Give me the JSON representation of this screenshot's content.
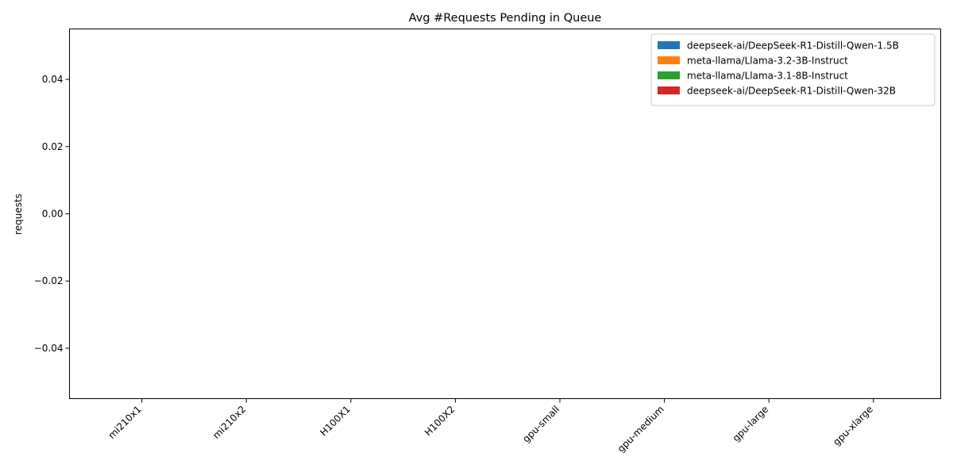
{
  "chart_data": {
    "type": "bar",
    "title": "Avg #Requests Pending in Queue",
    "xlabel": "",
    "ylabel": "requests",
    "categories": [
      "mi210x1",
      "mi210x2",
      "H100X1",
      "H100X2",
      "gpu-small",
      "gpu-medium",
      "gpu-large",
      "gpu-xlarge"
    ],
    "yticks": [
      "−0.04",
      "−0.02",
      "0.00",
      "0.02",
      "0.04"
    ],
    "ylim": [
      -0.055,
      0.055
    ],
    "grid": false,
    "legend_position": "top-right",
    "series": [
      {
        "name": "deepseek-ai/DeepSeek-R1-Distill-Qwen-1.5B",
        "color": "#1f77b4",
        "values": [
          0,
          0,
          0,
          0,
          0,
          0,
          0,
          0
        ]
      },
      {
        "name": "meta-llama/Llama-3.2-3B-Instruct",
        "color": "#ff7f0e",
        "values": [
          0,
          0,
          0,
          0,
          0,
          0,
          0,
          0
        ]
      },
      {
        "name": "meta-llama/Llama-3.1-8B-Instruct",
        "color": "#2ca02c",
        "values": [
          0,
          0,
          0,
          0,
          0,
          0,
          0,
          0
        ]
      },
      {
        "name": "deepseek-ai/DeepSeek-R1-Distill-Qwen-32B",
        "color": "#d62728",
        "values": [
          0,
          0,
          0,
          0,
          0,
          0,
          0,
          0
        ]
      }
    ]
  }
}
